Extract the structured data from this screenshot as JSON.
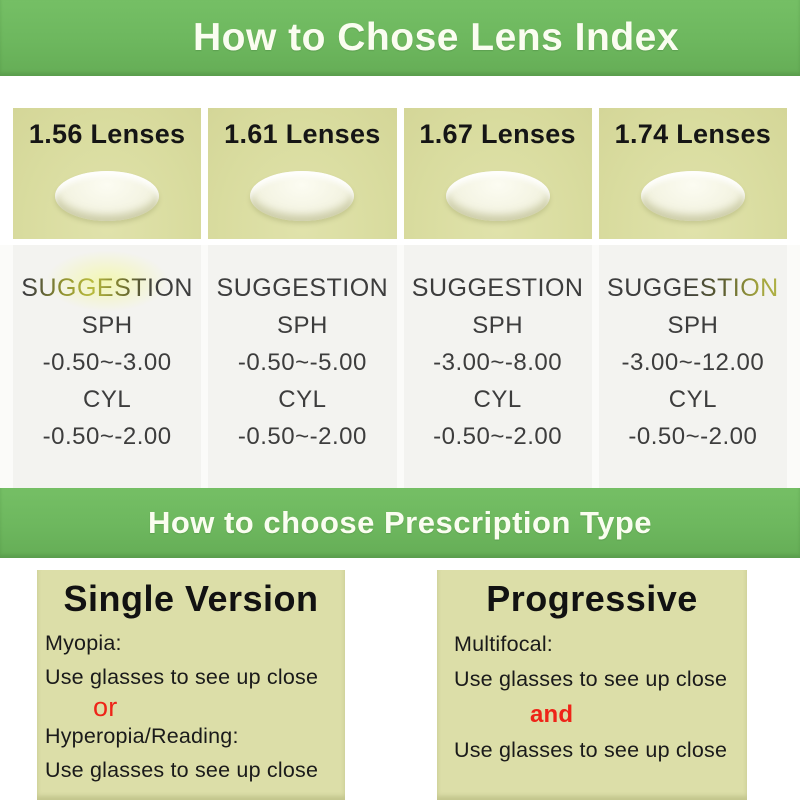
{
  "lens_section": {
    "title": "How to Chose Lens Index",
    "cards": [
      {
        "label": "1.56 Lenses",
        "suggestion_heading": "SUGGESTION",
        "sph_label": "SPH",
        "sph_range": "-0.50~-3.00",
        "cyl_label": "CYL",
        "cyl_range": "-0.50~-2.00"
      },
      {
        "label": "1.61 Lenses",
        "suggestion_heading": "SUGGESTION",
        "sph_label": "SPH",
        "sph_range": "-0.50~-5.00",
        "cyl_label": "CYL",
        "cyl_range": "-0.50~-2.00"
      },
      {
        "label": "1.67 Lenses",
        "suggestion_heading": "SUGGESTION",
        "sph_label": "SPH",
        "sph_range": "-3.00~-8.00",
        "cyl_label": "CYL",
        "cyl_range": "-0.50~-2.00"
      },
      {
        "label": "1.74 Lenses",
        "suggestion_heading": "SUGGESTION",
        "sph_label": "SPH",
        "sph_range": "-3.00~-12.00",
        "cyl_label": "CYL",
        "cyl_range": "-0.50~-2.00"
      }
    ]
  },
  "prescription_section": {
    "title": "How to choose Prescription Type",
    "boxes": [
      {
        "title": "Single Version",
        "lines": [
          "Myopia:",
          "Use glasses to see up close",
          "or",
          "Hyperopia/Reading:",
          "Use glasses to see up close"
        ]
      },
      {
        "title": "Progressive",
        "lines": [
          "Multifocal:",
          "Use glasses to see up close",
          "and",
          "Use glasses to see up close"
        ]
      }
    ]
  },
  "colors": {
    "banner_green": "#6db75e",
    "card_khaki": "#d9dc9f",
    "box_khaki": "#dcdea8",
    "suggestion_bg": "#f3f3f0",
    "accent_red": "#ee2418",
    "dark_text": "#1a1a1a"
  }
}
